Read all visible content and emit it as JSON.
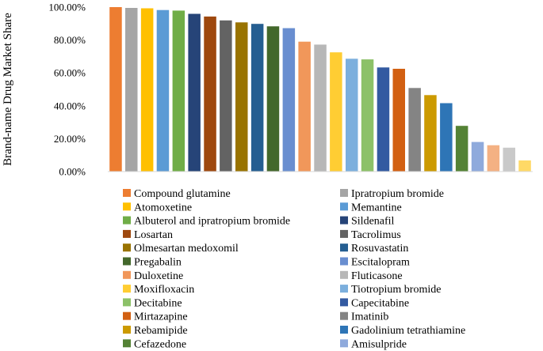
{
  "chart_data": {
    "type": "bar",
    "title": "",
    "xlabel": "",
    "ylabel": "Brand-name Drug Market Share",
    "ylim": [
      0,
      100
    ],
    "yticks": [
      "0.00%",
      "20.00%",
      "40.00%",
      "60.00%",
      "80.00%",
      "100.00%"
    ],
    "grid": false,
    "legend_position": "bottom",
    "bars": [
      {
        "name": "Compound glutamine",
        "value": 100.0,
        "color": "#ED7D31"
      },
      {
        "name": "Ipratropium bromide",
        "value": 99.5,
        "color": "#A5A5A5"
      },
      {
        "name": "Atomoxetine",
        "value": 99.3,
        "color": "#FFC000"
      },
      {
        "name": "Memantine",
        "value": 98.2,
        "color": "#5B9BD5"
      },
      {
        "name": "Albuterol and ipratropium bromide",
        "value": 97.9,
        "color": "#70AD47"
      },
      {
        "name": "Sildenafil",
        "value": 95.9,
        "color": "#264478"
      },
      {
        "name": "Losartan",
        "value": 94.3,
        "color": "#9E480E"
      },
      {
        "name": "Tacrolimus",
        "value": 91.9,
        "color": "#636363"
      },
      {
        "name": "Olmesartan medoxomil",
        "value": 90.7,
        "color": "#997300"
      },
      {
        "name": "Rosuvastatin",
        "value": 89.8,
        "color": "#255E91"
      },
      {
        "name": "Pregabalin",
        "value": 88.3,
        "color": "#43682B"
      },
      {
        "name": "Escitalopram",
        "value": 87.2,
        "color": "#698ED0"
      },
      {
        "name": "Duloxetine",
        "value": 79.0,
        "color": "#F1975A"
      },
      {
        "name": "Fluticasone",
        "value": 77.2,
        "color": "#B7B7B7"
      },
      {
        "name": "Moxifloxacin",
        "value": 72.5,
        "color": "#FFCD33"
      },
      {
        "name": "Tiotropium bromide",
        "value": 68.6,
        "color": "#7CAFDD"
      },
      {
        "name": "Decitabine",
        "value": 68.2,
        "color": "#8CC168"
      },
      {
        "name": "Capecitabine",
        "value": 63.3,
        "color": "#335AA1"
      },
      {
        "name": "Mirtazapine",
        "value": 62.5,
        "color": "#D26012"
      },
      {
        "name": "Imatinib",
        "value": 50.8,
        "color": "#848484"
      },
      {
        "name": "Rebamipide",
        "value": 46.5,
        "color": "#CC9A00"
      },
      {
        "name": "Gadolinium tetrathiamine",
        "value": 41.6,
        "color": "#2E75B6"
      },
      {
        "name": "Cefazedone",
        "value": 27.8,
        "color": "#548235"
      },
      {
        "name": "Amisulpride",
        "value": 18.0,
        "color": "#8FAADC"
      },
      {
        "name": "",
        "value": 16.0,
        "color": "#F4B183"
      },
      {
        "name": "",
        "value": 14.5,
        "color": "#C9C9C9"
      },
      {
        "name": "",
        "value": 6.8,
        "color": "#FFD966"
      }
    ]
  }
}
